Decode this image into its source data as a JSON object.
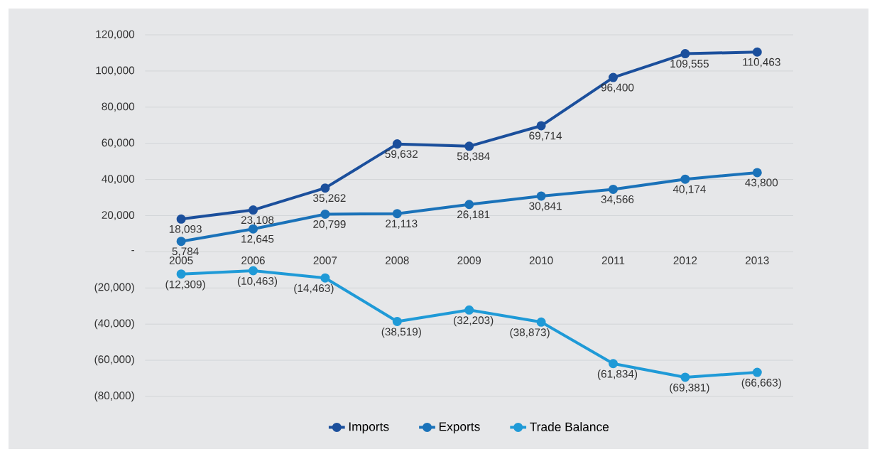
{
  "chart_data": {
    "type": "line",
    "categories": [
      "2005",
      "2006",
      "2007",
      "2008",
      "2009",
      "2010",
      "2011",
      "2012",
      "2013"
    ],
    "series": [
      {
        "name": "Imports",
        "color": "#1b4f9c",
        "values": [
          18093,
          23108,
          35262,
          59632,
          58384,
          69714,
          96400,
          109555,
          110463
        ],
        "value_labels": [
          "18,093",
          "23,108",
          "35,262",
          "59,632",
          "58,384",
          "69,714",
          "96,400",
          "109,555",
          "110,463"
        ]
      },
      {
        "name": "Exports",
        "color": "#1a72b9",
        "values": [
          5784,
          12645,
          20799,
          21113,
          26181,
          30841,
          34566,
          40174,
          43800
        ],
        "value_labels": [
          "5,784",
          "12,645",
          "20,799",
          "21,113",
          "26,181",
          "30,841",
          "34,566",
          "40,174",
          "43,800"
        ]
      },
      {
        "name": "Trade Balance",
        "color": "#1f9ad7",
        "values": [
          -12309,
          -10463,
          -14463,
          -38519,
          -32203,
          -38873,
          -61834,
          -69381,
          -66663
        ],
        "value_labels": [
          "(12,309)",
          "(10,463)",
          "(14,463)",
          "(38,519)",
          "(32,203)",
          "(38,873)",
          "(61,834)",
          "(69,381)",
          "(66,663)"
        ]
      }
    ],
    "ylim": [
      -80000,
      120000
    ],
    "yticks": [
      {
        "value": 120000,
        "label": "120,000"
      },
      {
        "value": 100000,
        "label": "100,000"
      },
      {
        "value": 80000,
        "label": "80,000"
      },
      {
        "value": 60000,
        "label": "60,000"
      },
      {
        "value": 40000,
        "label": "40,000"
      },
      {
        "value": 20000,
        "label": "20,000"
      },
      {
        "value": 0,
        "label": "-"
      },
      {
        "value": -20000,
        "label": "(20,000)"
      },
      {
        "value": -40000,
        "label": "(40,000)"
      },
      {
        "value": -60000,
        "label": "(60,000)"
      },
      {
        "value": -80000,
        "label": "(80,000)"
      }
    ],
    "grid": "y",
    "legend": "bottom",
    "marker": "circle",
    "line_style": "solid"
  }
}
